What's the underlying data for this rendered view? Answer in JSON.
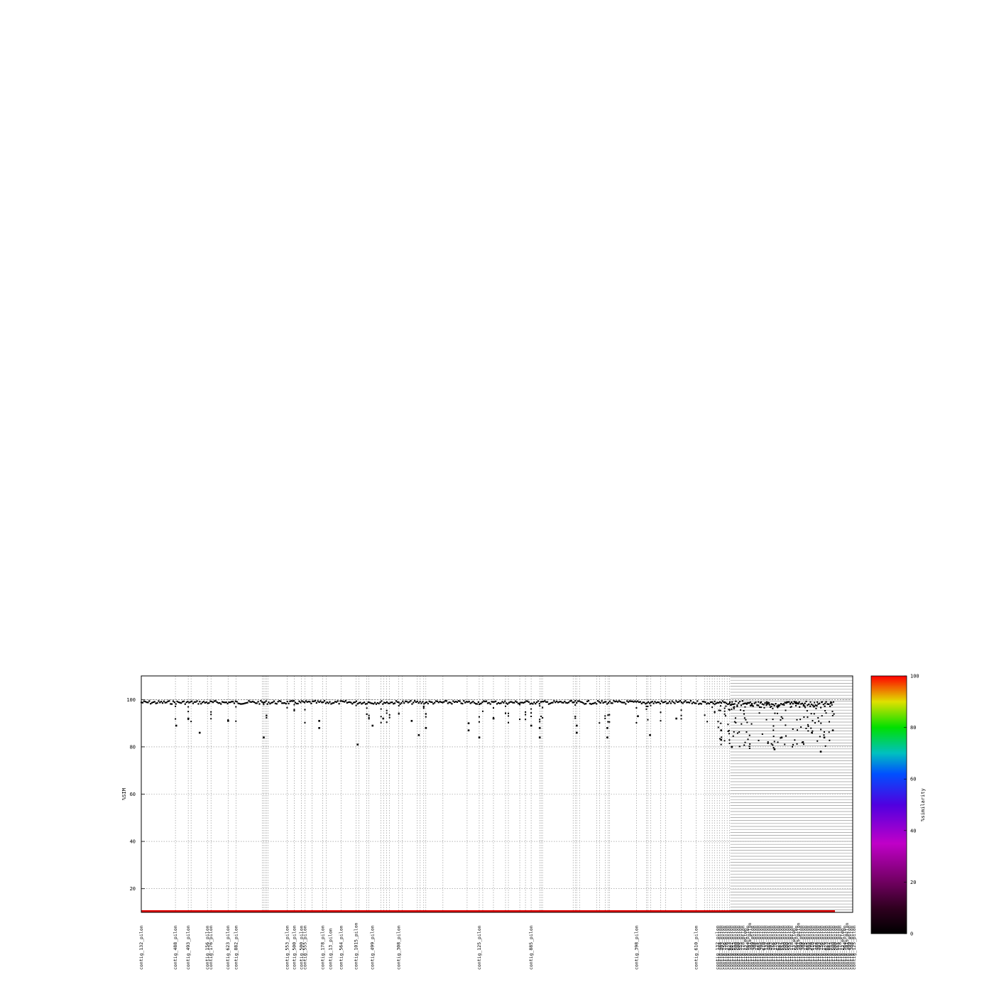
{
  "chart_data": {
    "type": "scatter",
    "ylabel": "%SIM",
    "ylim": [
      10,
      110
    ],
    "yticks": [
      20,
      40,
      60,
      80,
      100
    ],
    "reference_line": 100,
    "xlabel": "",
    "grid": true,
    "colorbar": {
      "label": "%similarity",
      "ticks": [
        0,
        20,
        40,
        60,
        80,
        100
      ],
      "range": [
        0,
        100
      ]
    },
    "contig_labels_visible": [
      "contig_132_pilon",
      "contig_488_pilon",
      "contig_493_pilon",
      "contig_156_pilon",
      "contig_176_pilon",
      "contig_623_pilon",
      "contig_882_pilon",
      "contig_553_pilon",
      "contig_500_pilon",
      "contig_500_pilon",
      "contig_555_pilon",
      "contig_178_pilon",
      "contig_13_pilon",
      "contig_564_pilon",
      "contig_1015_pilon",
      "contig_499_pilon",
      "contig_308_pilon",
      "contig_125_pilon",
      "contig_885_pilon",
      "contig_398_pilon",
      "contig_610_pilon"
    ],
    "main_trend": {
      "x_range": [
        0,
        1
      ],
      "y_value": 99.5
    },
    "outliers_sample": [
      {
        "x": 0.049,
        "y": 89
      },
      {
        "x": 0.066,
        "y": 92
      },
      {
        "x": 0.082,
        "y": 86
      },
      {
        "x": 0.122,
        "y": 91
      },
      {
        "x": 0.172,
        "y": 84
      },
      {
        "x": 0.25,
        "y": 88
      },
      {
        "x": 0.25,
        "y": 91
      },
      {
        "x": 0.304,
        "y": 81
      },
      {
        "x": 0.325,
        "y": 89
      },
      {
        "x": 0.34,
        "y": 92
      },
      {
        "x": 0.38,
        "y": 91
      },
      {
        "x": 0.39,
        "y": 85
      },
      {
        "x": 0.4,
        "y": 88
      },
      {
        "x": 0.46,
        "y": 90
      },
      {
        "x": 0.46,
        "y": 87
      },
      {
        "x": 0.475,
        "y": 84
      },
      {
        "x": 0.495,
        "y": 92
      },
      {
        "x": 0.548,
        "y": 89
      },
      {
        "x": 0.56,
        "y": 88
      },
      {
        "x": 0.56,
        "y": 84
      },
      {
        "x": 0.612,
        "y": 86
      },
      {
        "x": 0.612,
        "y": 89
      },
      {
        "x": 0.655,
        "y": 88
      },
      {
        "x": 0.655,
        "y": 84
      },
      {
        "x": 0.698,
        "y": 93
      },
      {
        "x": 0.715,
        "y": 85
      },
      {
        "x": 0.752,
        "y": 92
      },
      {
        "x": 0.815,
        "y": 83
      },
      {
        "x": 0.815,
        "y": 87
      },
      {
        "x": 0.83,
        "y": 80
      },
      {
        "x": 0.89,
        "y": 79
      },
      {
        "x": 0.9,
        "y": 84
      },
      {
        "x": 0.93,
        "y": 82
      },
      {
        "x": 0.955,
        "y": 78
      },
      {
        "x": 0.96,
        "y": 84
      },
      {
        "x": 0.972,
        "y": 87
      }
    ],
    "colors": {
      "points": "#000000",
      "reference_bar": "#e00000",
      "grid": "#888888"
    }
  }
}
